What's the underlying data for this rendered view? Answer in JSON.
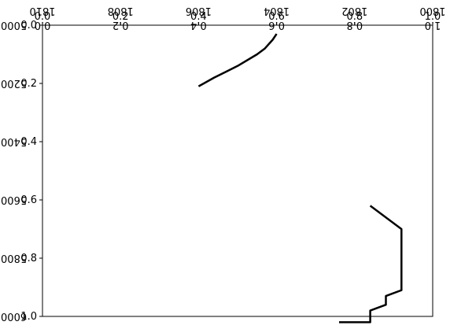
{
  "chart_data": [
    {
      "type": "line",
      "title": "",
      "xlabel": "",
      "ylabel": "",
      "xlim": [
        0.0,
        1.0
      ],
      "ylim": [
        1.0,
        0.0
      ],
      "xticks": [
        "0.0",
        "0.2",
        "0.4",
        "0.6",
        "0.8",
        "1.0"
      ],
      "yticks": [
        "0.0",
        "0.2",
        "0.4",
        "0.6",
        "0.8",
        "1.0"
      ],
      "grid": false,
      "series": []
    },
    {
      "type": "line",
      "title": "",
      "xlabel": "",
      "ylabel": "",
      "orientation": "mirrored",
      "xlim": [
        1800,
        1810
      ],
      "ylim": [
        6000,
        5000
      ],
      "xticks": [
        "1800",
        "1802",
        "1804",
        "1806",
        "1808",
        "1810"
      ],
      "xticks_mirrored": [
        "1800",
        "1802",
        "1804",
        "1806",
        "1808",
        "1810"
      ],
      "yticks": [
        "5000",
        "5200",
        "5400",
        "5600",
        "5800",
        "6000"
      ],
      "grid": false,
      "series": [
        {
          "x": [
            1804.0,
            1804.1,
            1804.3,
            1804.5,
            1805.0,
            1805.3,
            1805.6,
            1806.0
          ],
          "y": [
            5030,
            5050,
            5080,
            5100,
            5140,
            5160,
            5180,
            5210
          ],
          "note_ref": "upper-right trace"
        },
        {
          "x": [
            1801.6,
            1801.2,
            1800.8,
            1800.8,
            1800.8,
            1801.2,
            1801.2,
            1801.6,
            1801.6,
            1802.4
          ],
          "y": [
            5620,
            5660,
            5700,
            5740,
            5910,
            5930,
            5960,
            5980,
            6020,
            6020
          ],
          "note_ref": "lower-left trace"
        }
      ]
    }
  ]
}
